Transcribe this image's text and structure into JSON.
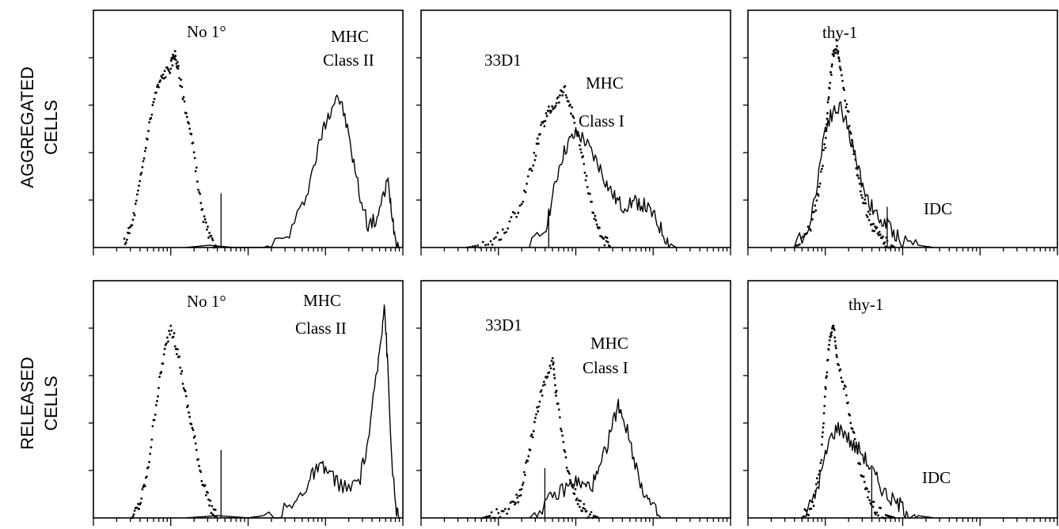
{
  "row_labels": [
    {
      "line1": "AGGREGATED",
      "line2": "CELLS"
    },
    {
      "line1": "RELEASED",
      "line2": "CELLS"
    }
  ],
  "chart_data": [
    {
      "type": "area",
      "row": 0,
      "col": 0,
      "xscale": "log",
      "xlim": [
        0,
        4
      ],
      "ylim": [
        0,
        1
      ],
      "series": [
        {
          "style": "dotted",
          "points": [
            [
              0.4,
              0.02
            ],
            [
              0.5,
              0.1
            ],
            [
              0.6,
              0.28
            ],
            [
              0.7,
              0.5
            ],
            [
              0.8,
              0.68
            ],
            [
              0.9,
              0.76
            ],
            [
              1.0,
              0.8
            ],
            [
              1.05,
              0.86
            ],
            [
              1.1,
              0.78
            ],
            [
              1.2,
              0.6
            ],
            [
              1.3,
              0.42
            ],
            [
              1.4,
              0.16
            ],
            [
              1.5,
              0.04
            ],
            [
              1.6,
              0.0
            ]
          ]
        },
        {
          "style": "solid",
          "points": [
            [
              1.2,
              0.0
            ],
            [
              1.5,
              0.01
            ],
            [
              1.8,
              0.0
            ],
            [
              2.2,
              0.0
            ],
            [
              2.5,
              0.04
            ],
            [
              2.7,
              0.18
            ],
            [
              2.85,
              0.36
            ],
            [
              2.95,
              0.5
            ],
            [
              3.05,
              0.6
            ],
            [
              3.15,
              0.68
            ],
            [
              3.25,
              0.58
            ],
            [
              3.35,
              0.4
            ],
            [
              3.45,
              0.22
            ],
            [
              3.55,
              0.1
            ],
            [
              3.65,
              0.12
            ],
            [
              3.75,
              0.22
            ],
            [
              3.8,
              0.3
            ],
            [
              3.85,
              0.18
            ],
            [
              3.9,
              0.05
            ],
            [
              3.95,
              0.0
            ]
          ]
        }
      ],
      "annotations": [
        "No 1°",
        "MHC",
        "Class II"
      ]
    },
    {
      "type": "area",
      "row": 0,
      "col": 1,
      "xscale": "log",
      "xlim": [
        0,
        4
      ],
      "ylim": [
        0,
        1
      ],
      "series": [
        {
          "style": "dotted",
          "points": [
            [
              0.6,
              0.0
            ],
            [
              0.9,
              0.02
            ],
            [
              1.1,
              0.08
            ],
            [
              1.3,
              0.2
            ],
            [
              1.45,
              0.38
            ],
            [
              1.55,
              0.52
            ],
            [
              1.65,
              0.6
            ],
            [
              1.75,
              0.64
            ],
            [
              1.85,
              0.7
            ],
            [
              1.95,
              0.6
            ],
            [
              2.05,
              0.46
            ],
            [
              2.15,
              0.28
            ],
            [
              2.25,
              0.12
            ],
            [
              2.35,
              0.04
            ],
            [
              2.45,
              0.0
            ]
          ]
        },
        {
          "style": "solid",
          "points": [
            [
              1.4,
              0.0
            ],
            [
              1.6,
              0.08
            ],
            [
              1.7,
              0.22
            ],
            [
              1.8,
              0.38
            ],
            [
              1.9,
              0.46
            ],
            [
              2.0,
              0.5
            ],
            [
              2.1,
              0.48
            ],
            [
              2.2,
              0.42
            ],
            [
              2.3,
              0.36
            ],
            [
              2.4,
              0.28
            ],
            [
              2.5,
              0.22
            ],
            [
              2.6,
              0.18
            ],
            [
              2.7,
              0.2
            ],
            [
              2.8,
              0.2
            ],
            [
              2.9,
              0.18
            ],
            [
              3.0,
              0.14
            ],
            [
              3.1,
              0.08
            ],
            [
              3.2,
              0.02
            ],
            [
              3.3,
              0.0
            ]
          ]
        }
      ],
      "annotations": [
        "33D1",
        "MHC",
        "Class I"
      ]
    },
    {
      "type": "area",
      "row": 0,
      "col": 2,
      "xscale": "log",
      "xlim": [
        0,
        4
      ],
      "ylim": [
        0,
        1
      ],
      "series": [
        {
          "style": "dotted",
          "points": [
            [
              0.6,
              0.0
            ],
            [
              0.8,
              0.08
            ],
            [
              0.9,
              0.22
            ],
            [
              1.0,
              0.46
            ],
            [
              1.05,
              0.7
            ],
            [
              1.1,
              0.85
            ],
            [
              1.15,
              0.9
            ],
            [
              1.2,
              0.76
            ],
            [
              1.3,
              0.58
            ],
            [
              1.4,
              0.36
            ],
            [
              1.5,
              0.2
            ],
            [
              1.6,
              0.1
            ],
            [
              1.7,
              0.05
            ],
            [
              1.8,
              0.02
            ],
            [
              1.9,
              0.0
            ]
          ]
        },
        {
          "style": "solid",
          "points": [
            [
              0.6,
              0.0
            ],
            [
              0.8,
              0.1
            ],
            [
              0.9,
              0.3
            ],
            [
              1.0,
              0.54
            ],
            [
              1.1,
              0.6
            ],
            [
              1.2,
              0.62
            ],
            [
              1.3,
              0.52
            ],
            [
              1.4,
              0.38
            ],
            [
              1.5,
              0.26
            ],
            [
              1.6,
              0.18
            ],
            [
              1.7,
              0.12
            ],
            [
              1.8,
              0.1
            ],
            [
              1.9,
              0.06
            ],
            [
              2.0,
              0.03
            ],
            [
              2.2,
              0.01
            ],
            [
              2.4,
              0.0
            ]
          ]
        }
      ],
      "annotations": [
        "thy-1",
        "IDC"
      ]
    },
    {
      "type": "area",
      "row": 1,
      "col": 0,
      "xscale": "log",
      "xlim": [
        0,
        4
      ],
      "ylim": [
        0,
        1
      ],
      "series": [
        {
          "style": "dotted",
          "points": [
            [
              0.5,
              0.0
            ],
            [
              0.6,
              0.06
            ],
            [
              0.7,
              0.2
            ],
            [
              0.8,
              0.48
            ],
            [
              0.9,
              0.7
            ],
            [
              1.0,
              0.85
            ],
            [
              1.1,
              0.72
            ],
            [
              1.2,
              0.52
            ],
            [
              1.3,
              0.36
            ],
            [
              1.4,
              0.18
            ],
            [
              1.5,
              0.06
            ],
            [
              1.6,
              0.0
            ]
          ]
        },
        {
          "style": "solid",
          "points": [
            [
              1.2,
              0.0
            ],
            [
              1.6,
              0.01
            ],
            [
              2.0,
              0.0
            ],
            [
              2.4,
              0.02
            ],
            [
              2.6,
              0.06
            ],
            [
              2.75,
              0.14
            ],
            [
              2.85,
              0.2
            ],
            [
              2.95,
              0.22
            ],
            [
              3.05,
              0.2
            ],
            [
              3.15,
              0.16
            ],
            [
              3.3,
              0.12
            ],
            [
              3.45,
              0.18
            ],
            [
              3.55,
              0.34
            ],
            [
              3.65,
              0.6
            ],
            [
              3.72,
              0.8
            ],
            [
              3.76,
              0.96
            ],
            [
              3.8,
              0.7
            ],
            [
              3.85,
              0.3
            ],
            [
              3.9,
              0.06
            ],
            [
              3.95,
              0.0
            ]
          ]
        }
      ],
      "annotations": [
        "No 1°",
        "MHC",
        "Class II"
      ]
    },
    {
      "type": "area",
      "row": 1,
      "col": 1,
      "xscale": "log",
      "xlim": [
        0,
        4
      ],
      "ylim": [
        0,
        1
      ],
      "series": [
        {
          "style": "dotted",
          "points": [
            [
              0.8,
              0.0
            ],
            [
              1.0,
              0.02
            ],
            [
              1.2,
              0.06
            ],
            [
              1.3,
              0.12
            ],
            [
              1.4,
              0.3
            ],
            [
              1.5,
              0.48
            ],
            [
              1.6,
              0.6
            ],
            [
              1.7,
              0.7
            ],
            [
              1.75,
              0.54
            ],
            [
              1.85,
              0.3
            ],
            [
              1.95,
              0.14
            ],
            [
              2.05,
              0.06
            ],
            [
              2.15,
              0.02
            ],
            [
              2.3,
              0.0
            ]
          ]
        },
        {
          "style": "solid",
          "points": [
            [
              1.4,
              0.0
            ],
            [
              1.6,
              0.06
            ],
            [
              1.75,
              0.1
            ],
            [
              1.9,
              0.14
            ],
            [
              2.0,
              0.16
            ],
            [
              2.1,
              0.14
            ],
            [
              2.2,
              0.14
            ],
            [
              2.3,
              0.2
            ],
            [
              2.4,
              0.32
            ],
            [
              2.5,
              0.44
            ],
            [
              2.55,
              0.5
            ],
            [
              2.6,
              0.46
            ],
            [
              2.7,
              0.34
            ],
            [
              2.8,
              0.2
            ],
            [
              2.9,
              0.1
            ],
            [
              3.0,
              0.04
            ],
            [
              3.1,
              0.0
            ]
          ]
        }
      ],
      "annotations": [
        "33D1",
        "MHC",
        "Class I"
      ]
    },
    {
      "type": "area",
      "row": 1,
      "col": 2,
      "xscale": "log",
      "xlim": [
        0,
        4
      ],
      "ylim": [
        0,
        1
      ],
      "series": [
        {
          "style": "dotted",
          "points": [
            [
              0.7,
              0.0
            ],
            [
              0.85,
              0.06
            ],
            [
              0.95,
              0.28
            ],
            [
              1.0,
              0.56
            ],
            [
              1.05,
              0.78
            ],
            [
              1.1,
              0.86
            ],
            [
              1.15,
              0.72
            ],
            [
              1.25,
              0.58
            ],
            [
              1.35,
              0.4
            ],
            [
              1.45,
              0.22
            ],
            [
              1.55,
              0.1
            ],
            [
              1.65,
              0.04
            ],
            [
              1.8,
              0.01
            ],
            [
              1.9,
              0.0
            ]
          ]
        },
        {
          "style": "solid",
          "points": [
            [
              0.7,
              0.0
            ],
            [
              0.85,
              0.08
            ],
            [
              0.95,
              0.2
            ],
            [
              1.05,
              0.34
            ],
            [
              1.15,
              0.4
            ],
            [
              1.25,
              0.38
            ],
            [
              1.35,
              0.32
            ],
            [
              1.45,
              0.3
            ],
            [
              1.55,
              0.24
            ],
            [
              1.65,
              0.18
            ],
            [
              1.75,
              0.12
            ],
            [
              1.85,
              0.08
            ],
            [
              1.95,
              0.06
            ],
            [
              2.05,
              0.03
            ],
            [
              2.2,
              0.01
            ],
            [
              2.4,
              0.0
            ]
          ]
        }
      ],
      "annotations": [
        "thy-1",
        "IDC"
      ]
    }
  ]
}
